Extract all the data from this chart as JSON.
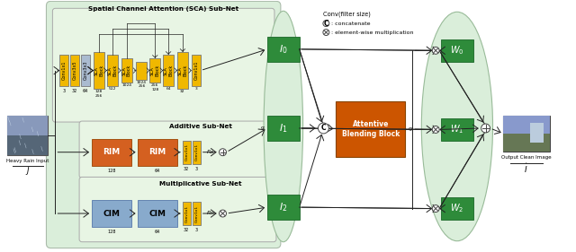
{
  "bg_color": "#ffffff",
  "light_green_bg": "#daeeda",
  "light_green_inner": "#e8f5e4",
  "dark_green": "#2e8b3a",
  "orange_rim": "#d46020",
  "orange_abb": "#cc5500",
  "yellow": "#f0b800",
  "blue_cim": "#88aacc",
  "arrow_color": "#222222",
  "label_SCA": "Spatial Channel Attention (SCA) Sub-Net",
  "label_Add": "Additive Sub-Net",
  "label_Mult": "Multiplicative Sub-Net",
  "label_ABB": "Attentive\nBlending Block",
  "label_heavy": "Heavy Rain Input",
  "label_output": "Output Clean Image",
  "legend_conv": "Conv(filter size)",
  "legend_c": ": concatenate",
  "legend_x": ": element-wise multiplication"
}
